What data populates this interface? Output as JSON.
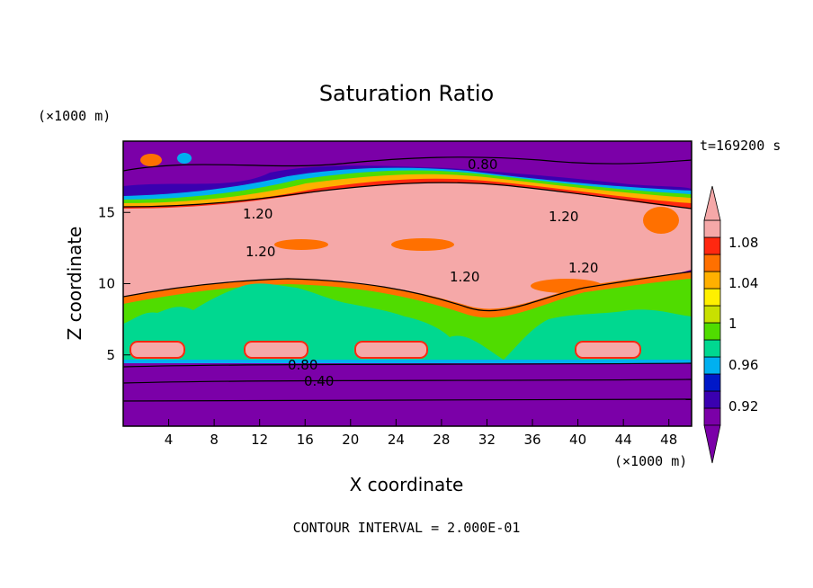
{
  "chart_data": {
    "type": "heatmap",
    "title": "Saturation Ratio",
    "xlabel": "X coordinate",
    "ylabel": "Z coordinate",
    "x_unit_label": "(×1000 m)",
    "z_unit_label": "(×1000 m)",
    "time_label": "t=169200 s",
    "footer": "CONTOUR INTERVAL = 2.000E-01",
    "xlim": [
      0,
      50
    ],
    "ylim": [
      0,
      20
    ],
    "x_ticks": [
      "4",
      "8",
      "12",
      "16",
      "20",
      "24",
      "28",
      "32",
      "36",
      "40",
      "44",
      "48"
    ],
    "y_ticks": [
      "5",
      "10",
      "15"
    ],
    "colorbar": {
      "labels": [
        "1.08",
        "1.04",
        "1",
        "0.96",
        "0.92"
      ],
      "colors": [
        "#7b00a8",
        "#3a00b0",
        "#0018c8",
        "#00b0f0",
        "#00d890",
        "#50dc00",
        "#c8e000",
        "#fff000",
        "#ffb000",
        "#ff7000",
        "#ff2810",
        "#f5a8a8"
      ]
    },
    "contour_labels": [
      "0.80",
      "1.20",
      "1.20",
      "1.20",
      "1.20",
      "1.20",
      "0.80",
      "0.40"
    ],
    "contour_interval": 0.2
  }
}
